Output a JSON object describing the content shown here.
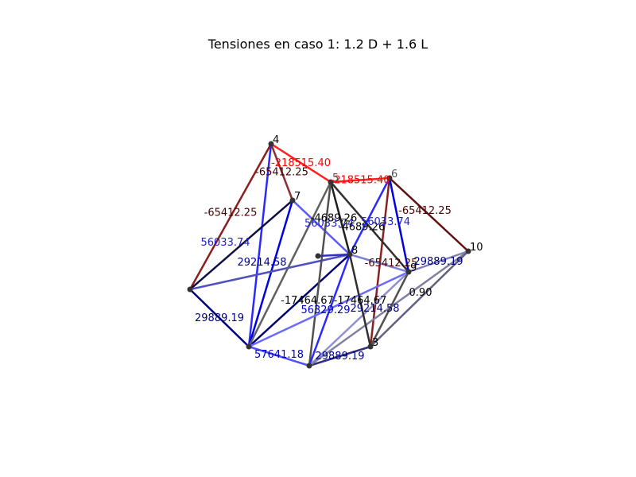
{
  "title": "Tensiones en caso 1: 1.2 D + 1.6 L",
  "nodes": [
    {
      "id": "4",
      "label": "4"
    },
    {
      "id": "5",
      "label": "5"
    },
    {
      "id": "6",
      "label": "6"
    },
    {
      "id": "7",
      "label": "7"
    },
    {
      "id": "8",
      "label": "8"
    },
    {
      "id": "9",
      "label": "9"
    },
    {
      "id": "10",
      "label": "10"
    },
    {
      "id": "A",
      "label": ""
    },
    {
      "id": "B",
      "label": ""
    },
    {
      "id": "C",
      "label": ""
    },
    {
      "id": "D",
      "label": "3"
    },
    {
      "id": "E",
      "label": ""
    }
  ],
  "edges": [
    {
      "from": "4",
      "to": "5",
      "color": "#ff2020",
      "label": "-218515.40",
      "label_color": "#ff0000"
    },
    {
      "from": "5",
      "to": "6",
      "color": "#ff2020",
      "label": "-218515.40",
      "label_color": "#ff0000"
    },
    {
      "from": "4",
      "to": "A",
      "color": "#8a1f1f",
      "label": "-65412.25",
      "label_color": "#4a0000"
    },
    {
      "from": "4",
      "to": "7",
      "color": "#8a3030",
      "label": "-65412.25",
      "label_color": "#4a0000"
    },
    {
      "from": "6",
      "to": "10",
      "color": "#601010",
      "label": "-65412.25",
      "label_color": "#4a0000"
    },
    {
      "from": "6",
      "to": "D",
      "color": "#8a2020",
      "label": "",
      "label_color": "#4a0000"
    },
    {
      "from": "4",
      "to": "B",
      "color": "#2a2aff",
      "label": "",
      "label_color": "#0000c0"
    },
    {
      "from": "7",
      "to": "B",
      "color": "#0000e0",
      "label": "",
      "label_color": "#0000c0"
    },
    {
      "from": "A",
      "to": "B",
      "color": "#000080",
      "label": "29889.19",
      "label_color": "#000080"
    },
    {
      "from": "A",
      "to": "7",
      "color": "#101040",
      "label": "56033.74",
      "label_color": "#2020e0"
    },
    {
      "from": "A",
      "to": "8",
      "color": "#5050c0",
      "label": "29214.58",
      "label_color": "#000080"
    },
    {
      "from": "7",
      "to": "8",
      "color": "#5a5aff",
      "label": "56033.74",
      "label_color": "#2020e0"
    },
    {
      "from": "5",
      "to": "8",
      "color": "#202020",
      "label": "-4689.26",
      "label_color": "#000000"
    },
    {
      "from": "5",
      "to": "9",
      "color": "#303030",
      "label": "-4689.26",
      "label_color": "#000000"
    },
    {
      "from": "6",
      "to": "8",
      "color": "#2a2aff",
      "label": "56033.74",
      "label_color": "#2020e0"
    },
    {
      "from": "6",
      "to": "9",
      "color": "#0000e0",
      "label": "",
      "label_color": "#0000c0"
    },
    {
      "from": "8",
      "to": "9",
      "color": "#8080d0",
      "label": "-65412.25",
      "label_color": "#4a0000"
    },
    {
      "from": "9",
      "to": "10",
      "color": "#8080c0",
      "label": "29889.19",
      "label_color": "#000080"
    },
    {
      "from": "B",
      "to": "C",
      "color": "#5050ff",
      "label": "57641.18",
      "label_color": "#0000c0"
    },
    {
      "from": "C",
      "to": "D",
      "color": "#303080",
      "label": "29889.19",
      "label_color": "#000080"
    },
    {
      "from": "B",
      "to": "8",
      "color": "#000070",
      "label": "-17464.67",
      "label_color": "#000000"
    },
    {
      "from": "B",
      "to": "5",
      "color": "#606060",
      "label": "",
      "label_color": "#000000"
    },
    {
      "from": "C",
      "to": "5",
      "color": "#505050",
      "label": "",
      "label_color": "#000000"
    },
    {
      "from": "C",
      "to": "8",
      "color": "#2a2aff",
      "label": "56329.29",
      "label_color": "#0000c0"
    },
    {
      "from": "B",
      "to": "9",
      "color": "#6a6aff",
      "label": "",
      "label_color": "#0000c0"
    },
    {
      "from": "C",
      "to": "9",
      "color": "#9090d0",
      "label": "29214.58",
      "label_color": "#000080"
    },
    {
      "from": "C",
      "to": "10",
      "color": "#8080a0",
      "label": "0.90",
      "label_color": "#000000"
    },
    {
      "from": "D",
      "to": "10",
      "color": "#606080",
      "label": "",
      "label_color": "#000000"
    },
    {
      "from": "D",
      "to": "8",
      "color": "#303030",
      "label": "-17464.67",
      "label_color": "#000000"
    },
    {
      "from": "E",
      "to": "8",
      "color": "#3030c0",
      "label": "",
      "label_color": "#000080"
    },
    {
      "from": "D",
      "to": "9",
      "color": "#505050",
      "label": "",
      "label_color": "#000000"
    }
  ]
}
